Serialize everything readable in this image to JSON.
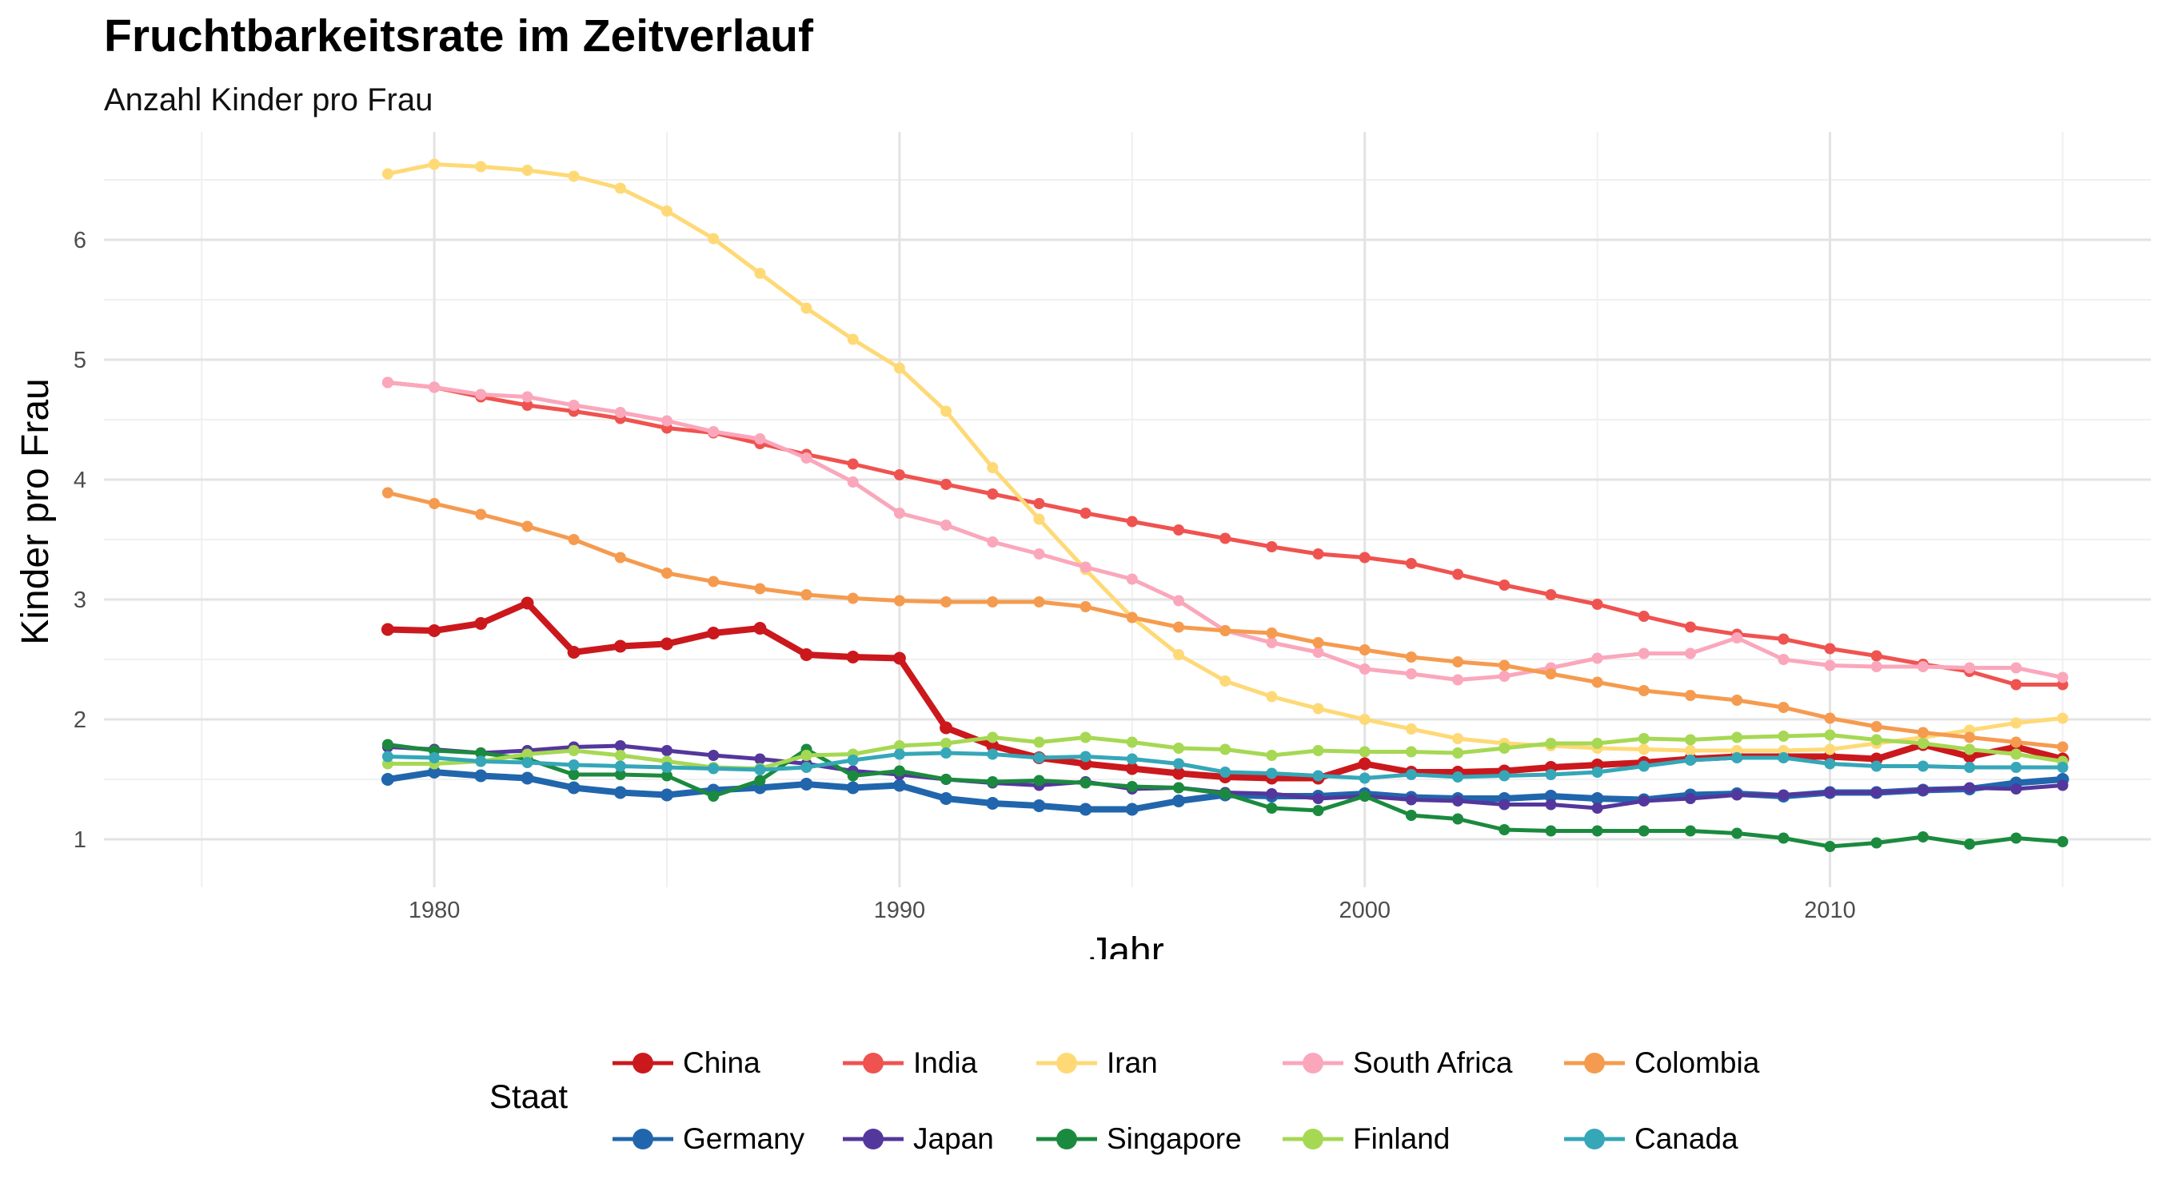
{
  "chart_data": {
    "type": "line",
    "title": "Fruchtbarkeitsrate im Zeitverlauf",
    "subtitle": "Anzahl Kinder pro Frau",
    "xlabel": "Jahr",
    "ylabel": "Kinder pro Frau",
    "xlim": [
      1972.9,
      2016.9
    ],
    "ylim": [
      0.6,
      6.9
    ],
    "xticks": [
      1980,
      1990,
      2000,
      2010
    ],
    "yticks": [
      1,
      2,
      3,
      4,
      5,
      6
    ],
    "grid": true,
    "legend_title": "Staat",
    "legend_position": "bottom",
    "x": [
      1979,
      1980,
      1981,
      1982,
      1983,
      1984,
      1985,
      1986,
      1987,
      1988,
      1989,
      1990,
      1991,
      1992,
      1993,
      1994,
      1995,
      1996,
      1997,
      1998,
      1999,
      2000,
      2001,
      2002,
      2003,
      2004,
      2005,
      2006,
      2007,
      2008,
      2009,
      2010,
      2011,
      2012,
      2013,
      2014,
      2015
    ],
    "series": [
      {
        "name": "China",
        "color": "#CB181D",
        "width": "thick",
        "values": [
          2.75,
          2.74,
          2.8,
          2.97,
          2.56,
          2.61,
          2.63,
          2.72,
          2.76,
          2.54,
          2.52,
          2.51,
          1.93,
          1.78,
          1.68,
          1.63,
          1.59,
          1.55,
          1.52,
          1.51,
          1.51,
          1.63,
          1.56,
          1.56,
          1.57,
          1.6,
          1.62,
          1.64,
          1.67,
          1.69,
          1.69,
          1.69,
          1.67,
          1.79,
          1.69,
          1.77,
          1.67
        ]
      },
      {
        "name": "India",
        "color": "#EF5350",
        "width": "normal",
        "values": [
          4.81,
          4.77,
          4.69,
          4.62,
          4.57,
          4.51,
          4.43,
          4.39,
          4.3,
          4.21,
          4.13,
          4.04,
          3.96,
          3.88,
          3.8,
          3.72,
          3.65,
          3.58,
          3.51,
          3.44,
          3.38,
          3.35,
          3.3,
          3.21,
          3.12,
          3.04,
          2.96,
          2.86,
          2.77,
          2.71,
          2.67,
          2.59,
          2.53,
          2.46,
          2.4,
          2.29,
          2.29
        ]
      },
      {
        "name": "Iran",
        "color": "#FED976",
        "width": "normal",
        "values": [
          6.55,
          6.63,
          6.61,
          6.58,
          6.53,
          6.43,
          6.24,
          6.01,
          5.72,
          5.43,
          5.17,
          4.93,
          4.57,
          4.1,
          3.67,
          3.25,
          2.85,
          2.54,
          2.32,
          2.19,
          2.09,
          2.0,
          1.92,
          1.84,
          1.8,
          1.78,
          1.76,
          1.75,
          1.74,
          1.74,
          1.74,
          1.75,
          1.8,
          1.85,
          1.91,
          1.97,
          2.01
        ]
      },
      {
        "name": "South Africa",
        "color": "#FAA7BC",
        "width": "normal",
        "values": [
          4.81,
          4.77,
          4.71,
          4.69,
          4.62,
          4.56,
          4.49,
          4.4,
          4.34,
          4.18,
          3.98,
          3.72,
          3.62,
          3.48,
          3.38,
          3.27,
          3.17,
          2.99,
          2.74,
          2.64,
          2.56,
          2.42,
          2.38,
          2.33,
          2.36,
          2.43,
          2.51,
          2.55,
          2.55,
          2.68,
          2.5,
          2.45,
          2.44,
          2.44,
          2.43,
          2.43,
          2.35
        ]
      },
      {
        "name": "Colombia",
        "color": "#F59B4F",
        "width": "normal",
        "values": [
          3.89,
          3.8,
          3.71,
          3.61,
          3.5,
          3.35,
          3.22,
          3.15,
          3.09,
          3.04,
          3.01,
          2.99,
          2.98,
          2.98,
          2.98,
          2.94,
          2.85,
          2.77,
          2.74,
          2.72,
          2.64,
          2.58,
          2.52,
          2.48,
          2.45,
          2.38,
          2.31,
          2.24,
          2.2,
          2.16,
          2.1,
          2.01,
          1.94,
          1.89,
          1.85,
          1.81,
          1.77
        ]
      },
      {
        "name": "Germany",
        "color": "#2166AC",
        "width": "thick",
        "values": [
          1.5,
          1.56,
          1.53,
          1.51,
          1.43,
          1.39,
          1.37,
          1.41,
          1.43,
          1.46,
          1.43,
          1.45,
          1.34,
          1.3,
          1.28,
          1.25,
          1.25,
          1.32,
          1.37,
          1.36,
          1.36,
          1.38,
          1.35,
          1.34,
          1.34,
          1.36,
          1.34,
          1.33,
          1.37,
          1.38,
          1.36,
          1.39,
          1.39,
          1.41,
          1.42,
          1.47,
          1.5
        ]
      },
      {
        "name": "Japan",
        "color": "#54379C",
        "width": "normal",
        "values": [
          1.77,
          1.75,
          1.72,
          1.74,
          1.77,
          1.78,
          1.74,
          1.7,
          1.67,
          1.63,
          1.57,
          1.54,
          1.5,
          1.47,
          1.45,
          1.48,
          1.42,
          1.43,
          1.39,
          1.38,
          1.34,
          1.36,
          1.33,
          1.32,
          1.29,
          1.29,
          1.26,
          1.32,
          1.34,
          1.37,
          1.37,
          1.39,
          1.39,
          1.41,
          1.43,
          1.42,
          1.45
        ]
      },
      {
        "name": "Singapore",
        "color": "#1B8A3E",
        "width": "normal",
        "values": [
          1.79,
          1.74,
          1.72,
          1.67,
          1.54,
          1.54,
          1.53,
          1.36,
          1.49,
          1.75,
          1.53,
          1.57,
          1.5,
          1.48,
          1.49,
          1.47,
          1.44,
          1.43,
          1.38,
          1.26,
          1.24,
          1.36,
          1.2,
          1.17,
          1.08,
          1.07,
          1.07,
          1.07,
          1.07,
          1.05,
          1.01,
          0.94,
          0.97,
          1.02,
          0.96,
          1.01,
          0.98
        ]
      },
      {
        "name": "Finland",
        "color": "#A6D854",
        "width": "normal",
        "values": [
          1.63,
          1.63,
          1.65,
          1.71,
          1.74,
          1.7,
          1.65,
          1.6,
          1.59,
          1.7,
          1.71,
          1.78,
          1.8,
          1.85,
          1.81,
          1.85,
          1.81,
          1.76,
          1.75,
          1.7,
          1.74,
          1.73,
          1.73,
          1.72,
          1.76,
          1.8,
          1.8,
          1.84,
          1.83,
          1.85,
          1.86,
          1.87,
          1.83,
          1.8,
          1.75,
          1.71,
          1.65
        ]
      },
      {
        "name": "Canada",
        "color": "#35A7B8",
        "width": "normal",
        "values": [
          1.69,
          1.68,
          1.65,
          1.64,
          1.62,
          1.61,
          1.6,
          1.59,
          1.58,
          1.6,
          1.66,
          1.71,
          1.72,
          1.71,
          1.68,
          1.69,
          1.67,
          1.63,
          1.56,
          1.55,
          1.53,
          1.51,
          1.54,
          1.52,
          1.53,
          1.54,
          1.56,
          1.61,
          1.66,
          1.68,
          1.68,
          1.63,
          1.61,
          1.61,
          1.6,
          1.6,
          1.6
        ]
      }
    ]
  }
}
